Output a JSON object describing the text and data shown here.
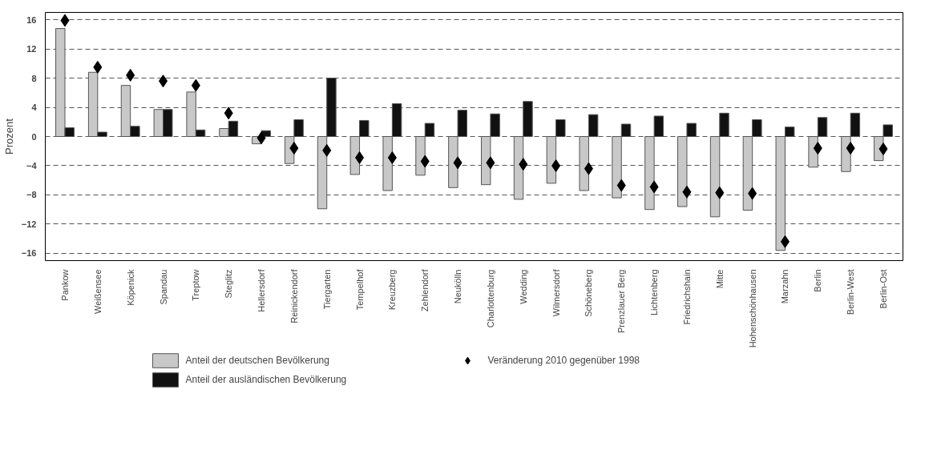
{
  "chart_data": {
    "type": "bar",
    "ylabel": "Prozent",
    "categories": [
      "Pankow",
      "Weißensee",
      "Köpenick",
      "Spandau",
      "Treptow",
      "Steglitz",
      "Hellersdorf",
      "Reinickendorf",
      "Tiergarten",
      "Tempelhof",
      "Kreuzberg",
      "Zehlendorf",
      "Neukölln",
      "Charlottenburg",
      "Wedding",
      "Wilmersdorf",
      "Schöneberg",
      "Prenzlauer Berg",
      "Lichtenberg",
      "Friedrichshain",
      "Mitte",
      "Hohenschönhausen",
      "Marzahn",
      "Berlin",
      "Berlin-West",
      "Berlin-Ost"
    ],
    "series": [
      {
        "name": "Anteil der deutschen Bevölkerung",
        "color": "#c8c8c8",
        "values": [
          14.8,
          8.8,
          7.0,
          3.7,
          6.1,
          1.1,
          -1.0,
          -3.7,
          -9.9,
          -5.2,
          -7.4,
          -5.3,
          -7.0,
          -6.6,
          -8.6,
          -6.4,
          -7.4,
          -8.4,
          -10.0,
          -9.6,
          -11.0,
          -10.1,
          -15.6,
          -4.2,
          -4.8,
          -3.3
        ]
      },
      {
        "name": "Anteil der ausländischen Bevölkerung",
        "color": "#111111",
        "values": [
          1.2,
          0.6,
          1.4,
          3.7,
          0.9,
          2.1,
          0.8,
          2.3,
          8.0,
          2.2,
          4.5,
          1.8,
          3.6,
          3.1,
          4.8,
          2.3,
          3.0,
          1.7,
          2.8,
          1.8,
          3.2,
          2.3,
          1.3,
          2.6,
          3.2,
          1.6
        ]
      },
      {
        "name": "Veränderung 2010 gegenüber 1998",
        "type": "scatter",
        "marker": "diamond",
        "color": "#000000",
        "values": [
          15.9,
          9.5,
          8.4,
          7.6,
          7.0,
          3.2,
          -0.2,
          -1.6,
          -1.9,
          -2.9,
          -2.9,
          -3.4,
          -3.6,
          -3.6,
          -3.8,
          -4.0,
          -4.4,
          -6.7,
          -6.9,
          -7.6,
          -7.7,
          -7.8,
          -14.4,
          -1.6,
          -1.6,
          -1.7
        ]
      }
    ],
    "ylim": [
      -17,
      17
    ],
    "yticks": [
      -16,
      -12,
      -8,
      -4,
      0,
      4,
      8,
      12,
      16
    ],
    "grid": "y",
    "line_style": "dashed",
    "legend": "bottom"
  }
}
